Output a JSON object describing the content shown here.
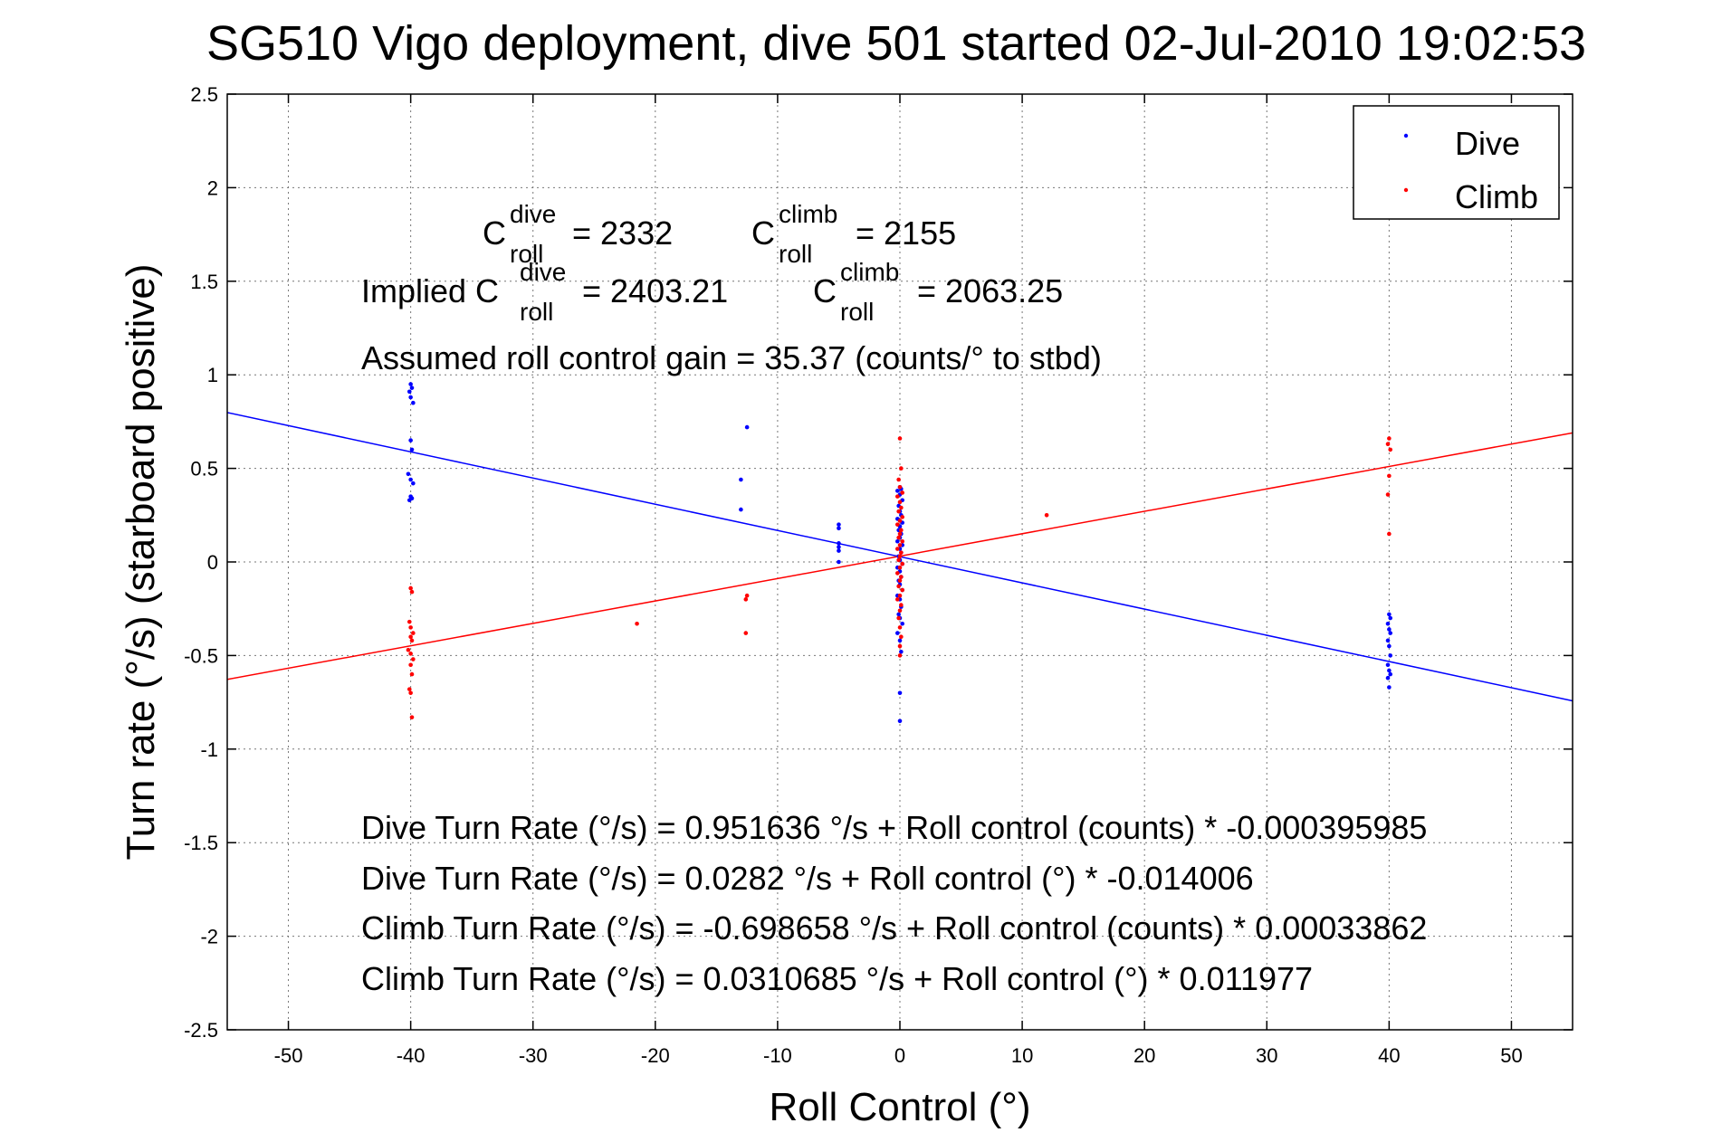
{
  "chart_data": {
    "type": "scatter",
    "title": "SG510 Vigo deployment, dive 501 started 02-Jul-2010 19:02:53",
    "xlabel": "Roll Control (°)",
    "ylabel": "Turn rate (°/s)  (starboard positive)",
    "xlim": [
      -55,
      55
    ],
    "ylim": [
      -2.5,
      2.5
    ],
    "xticks": [
      -50,
      -40,
      -30,
      -20,
      -10,
      0,
      10,
      20,
      30,
      40,
      50
    ],
    "yticks": [
      -2.5,
      -2,
      -1.5,
      -1,
      -0.5,
      0,
      0.5,
      1,
      1.5,
      2,
      2.5
    ],
    "grid": true,
    "legend_position": "top-right",
    "legend": [
      "Dive",
      "Climb"
    ],
    "colors": {
      "Dive": "#0000ff",
      "Climb": "#ff0000"
    },
    "series": [
      {
        "name": "Dive",
        "color": "#0000ff",
        "points": [
          [
            -40,
            0.95
          ],
          [
            -39.9,
            0.93
          ],
          [
            -40.1,
            0.91
          ],
          [
            -40,
            0.88
          ],
          [
            -39.8,
            0.85
          ],
          [
            -40,
            0.65
          ],
          [
            -39.9,
            0.6
          ],
          [
            -40.2,
            0.47
          ],
          [
            -40,
            0.44
          ],
          [
            -39.8,
            0.42
          ],
          [
            -40,
            0.35
          ],
          [
            -39.9,
            0.34
          ],
          [
            -40.1,
            0.33
          ],
          [
            -12.5,
            0.72
          ],
          [
            -13,
            0.44
          ],
          [
            -13,
            0.28
          ],
          [
            -5,
            0.2
          ],
          [
            -5,
            0.18
          ],
          [
            -5,
            0.1
          ],
          [
            -5,
            0.08
          ],
          [
            -5,
            0.06
          ],
          [
            -5,
            0.0
          ],
          [
            0,
            0.4
          ],
          [
            0.1,
            0.39
          ],
          [
            -0.2,
            0.38
          ],
          [
            0,
            0.36
          ],
          [
            0.2,
            0.33
          ],
          [
            -0.1,
            0.3
          ],
          [
            0,
            0.27
          ],
          [
            0.1,
            0.25
          ],
          [
            -0.2,
            0.23
          ],
          [
            0.2,
            0.21
          ],
          [
            0,
            0.19
          ],
          [
            -0.1,
            0.17
          ],
          [
            0.1,
            0.15
          ],
          [
            0,
            0.13
          ],
          [
            -0.2,
            0.11
          ],
          [
            0.2,
            0.09
          ],
          [
            0,
            0.07
          ],
          [
            0.1,
            0.05
          ],
          [
            -0.1,
            0.03
          ],
          [
            0,
            0.01
          ],
          [
            0.2,
            -0.01
          ],
          [
            -0.2,
            -0.03
          ],
          [
            0,
            -0.05
          ],
          [
            0.1,
            -0.08
          ],
          [
            -0.1,
            -0.1
          ],
          [
            0,
            -0.12
          ],
          [
            0.2,
            -0.15
          ],
          [
            -0.2,
            -0.18
          ],
          [
            0,
            -0.2
          ],
          [
            0.1,
            -0.24
          ],
          [
            -0.1,
            -0.28
          ],
          [
            0,
            -0.3
          ],
          [
            0.2,
            -0.33
          ],
          [
            -0.2,
            -0.38
          ],
          [
            0,
            -0.42
          ],
          [
            0.1,
            -0.48
          ],
          [
            0,
            -0.7
          ],
          [
            0,
            -0.85
          ],
          [
            40,
            -0.28
          ],
          [
            40.1,
            -0.3
          ],
          [
            39.9,
            -0.33
          ],
          [
            40,
            -0.36
          ],
          [
            40.1,
            -0.38
          ],
          [
            39.9,
            -0.42
          ],
          [
            40,
            -0.45
          ],
          [
            40.1,
            -0.5
          ],
          [
            39.9,
            -0.55
          ],
          [
            40,
            -0.58
          ],
          [
            40.1,
            -0.6
          ],
          [
            39.9,
            -0.62
          ],
          [
            40,
            -0.67
          ]
        ]
      },
      {
        "name": "Climb",
        "color": "#ff0000",
        "points": [
          [
            -40,
            -0.14
          ],
          [
            -39.9,
            -0.16
          ],
          [
            -40.1,
            -0.32
          ],
          [
            -40,
            -0.35
          ],
          [
            -39.8,
            -0.38
          ],
          [
            -40,
            -0.4
          ],
          [
            -39.9,
            -0.42
          ],
          [
            -40.2,
            -0.47
          ],
          [
            -40,
            -0.49
          ],
          [
            -39.8,
            -0.52
          ],
          [
            -40,
            -0.55
          ],
          [
            -39.9,
            -0.6
          ],
          [
            -40.1,
            -0.68
          ],
          [
            -40,
            -0.7
          ],
          [
            -39.9,
            -0.83
          ],
          [
            -21.5,
            -0.33
          ],
          [
            -12.5,
            -0.18
          ],
          [
            -12.6,
            -0.2
          ],
          [
            -12.6,
            -0.38
          ],
          [
            0,
            0.66
          ],
          [
            0.1,
            0.5
          ],
          [
            -0.1,
            0.44
          ],
          [
            0,
            0.4
          ],
          [
            0.2,
            0.37
          ],
          [
            -0.2,
            0.35
          ],
          [
            0,
            0.32
          ],
          [
            0.1,
            0.29
          ],
          [
            -0.1,
            0.27
          ],
          [
            0.2,
            0.24
          ],
          [
            0,
            0.22
          ],
          [
            -0.2,
            0.2
          ],
          [
            0.1,
            0.17
          ],
          [
            0,
            0.15
          ],
          [
            -0.1,
            0.13
          ],
          [
            0.2,
            0.11
          ],
          [
            0,
            0.09
          ],
          [
            -0.2,
            0.07
          ],
          [
            0.1,
            0.05
          ],
          [
            0,
            0.03
          ],
          [
            -0.1,
            0.01
          ],
          [
            0.2,
            -0.01
          ],
          [
            0,
            -0.03
          ],
          [
            -0.2,
            -0.06
          ],
          [
            0.1,
            -0.08
          ],
          [
            0,
            -0.1
          ],
          [
            -0.1,
            -0.13
          ],
          [
            0.2,
            -0.15
          ],
          [
            0,
            -0.18
          ],
          [
            -0.2,
            -0.2
          ],
          [
            0.1,
            -0.23
          ],
          [
            0,
            -0.26
          ],
          [
            -0.1,
            -0.3
          ],
          [
            0,
            -0.35
          ],
          [
            0.1,
            -0.4
          ],
          [
            0,
            -0.45
          ],
          [
            0,
            -0.5
          ],
          [
            12,
            0.25
          ],
          [
            40,
            0.66
          ],
          [
            39.9,
            0.63
          ],
          [
            40.1,
            0.6
          ],
          [
            40,
            0.46
          ],
          [
            39.9,
            0.36
          ],
          [
            40,
            0.15
          ]
        ]
      }
    ],
    "fit_lines": [
      {
        "name": "Dive",
        "color": "#0000ff",
        "intercept": 0.0282,
        "slope": -0.014006
      },
      {
        "name": "Climb",
        "color": "#ff0000",
        "intercept": 0.0310685,
        "slope": 0.011977
      }
    ],
    "annotations": {
      "c_roll_dive": "= 2332",
      "c_roll_climb": "= 2155",
      "implied_prefix": "Implied C",
      "implied_dive": "= 2403.21",
      "implied_climb": "= 2063.25",
      "c_letter": "C",
      "sup_dive": "dive",
      "sup_climb": "climb",
      "sub_roll": "roll",
      "gain": "Assumed roll control gain = 35.37 (counts/° to stbd)",
      "eq1": "Dive Turn Rate (°/s) = 0.951636 °/s + Roll control (counts) * -0.000395985",
      "eq2": "Dive Turn Rate (°/s) = 0.0282 °/s + Roll control (°) * -0.014006",
      "eq3": "Climb Turn Rate (°/s) = -0.698658 °/s + Roll control (counts) * 0.00033862",
      "eq4": "Climb Turn Rate (°/s) = 0.0310685 °/s + Roll control (°) * 0.011977"
    }
  }
}
